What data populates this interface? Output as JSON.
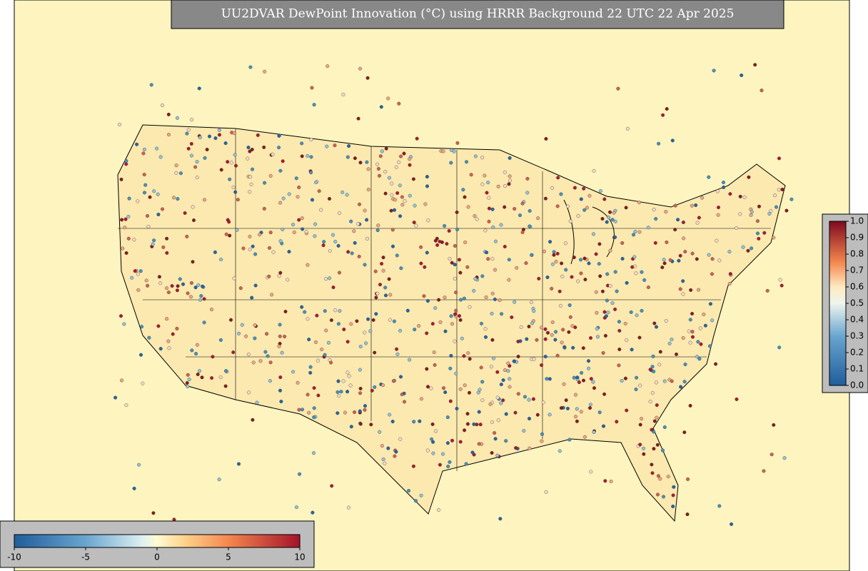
{
  "title": "UU2DVAR DewPoint Innovation (°C) using HRRR Background 22 UTC 22 Apr 2025",
  "innovation_colorbar": {
    "lim": [
      -10,
      10
    ],
    "ticks": [
      -10,
      -5,
      0,
      5,
      10
    ]
  },
  "observation_colorbar": {
    "lim": [
      0,
      1
    ],
    "ticks": [
      {
        "value": 0,
        "label": "0.0"
      },
      0.1,
      0.2,
      0.3,
      0.4,
      0.5,
      0.6,
      0.7,
      0.8,
      0.9,
      {
        "value": 1,
        "label": "1.0"
      }
    ]
  }
}
